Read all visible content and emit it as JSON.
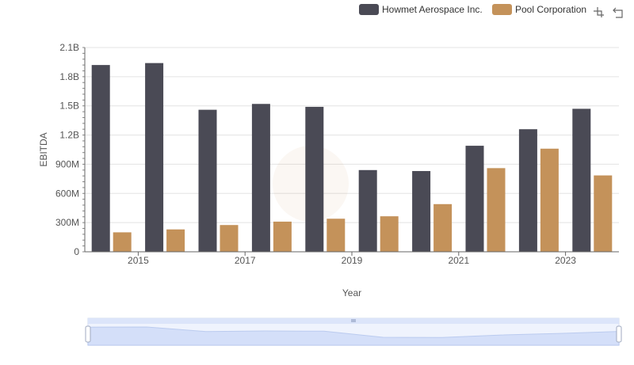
{
  "chart_data": {
    "type": "bar",
    "x": [
      2014,
      2015,
      2016,
      2017,
      2018,
      2019,
      2020,
      2021,
      2022,
      2023
    ],
    "x_tick_labels": [
      "2015",
      "2017",
      "2019",
      "2021",
      "2023"
    ],
    "series": [
      {
        "name": "Howmet Aerospace Inc.",
        "color": "#4a4a55",
        "values": [
          1920000000,
          1940000000,
          1460000000,
          1520000000,
          1490000000,
          840000000,
          830000000,
          1090000000,
          1260000000,
          1470000000
        ]
      },
      {
        "name": "Pool Corporation",
        "color": "#c4925a",
        "values": [
          200000000,
          230000000,
          275000000,
          310000000,
          340000000,
          365000000,
          490000000,
          860000000,
          1060000000,
          785000000
        ]
      }
    ],
    "ylim": [
      0,
      2100000000
    ],
    "y_ticks": [
      0,
      300000000,
      600000000,
      900000000,
      1200000000,
      1500000000,
      1800000000,
      2100000000
    ],
    "y_tick_labels": [
      "0",
      "300M",
      "600M",
      "900M",
      "1.2B",
      "1.5B",
      "1.8B",
      "2.1B"
    ],
    "xlabel": "Year",
    "ylabel": "EBITDA",
    "grid": true,
    "legend_position": "top-right"
  },
  "toolbar": {
    "icons": [
      "zoom-icon",
      "restore-icon"
    ]
  },
  "data_zoom": {
    "start": 0,
    "end": 1
  }
}
